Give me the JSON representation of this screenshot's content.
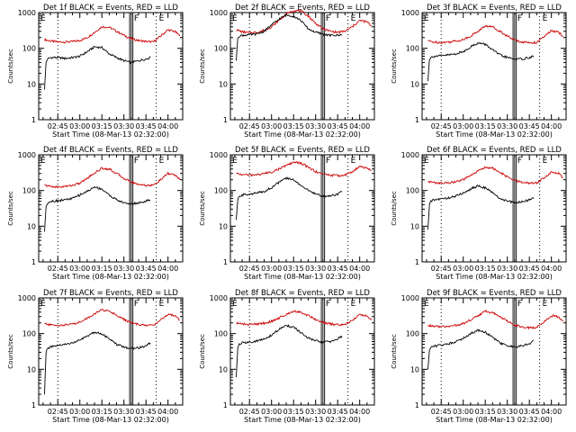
{
  "chart_data": [
    {
      "type": "line",
      "title": "Det 1f BLACK = Events, RED = LLD",
      "xlabel": "Start Time (08-Mar-13 02:32:00)",
      "ylabel": "Counts/sec",
      "yscale": "log",
      "ylim": [
        1,
        1000
      ],
      "yticks": [
        "1",
        "10",
        "100",
        "1000"
      ],
      "xticks": [
        "02:45",
        "03:00",
        "03:15",
        "03:30",
        "03:45",
        "04:00"
      ],
      "flags": [
        "F",
        "E"
      ],
      "series": [
        {
          "color": "#cc0000",
          "x": [
            "02:36",
            "02:40",
            "02:45",
            "02:50",
            "02:55",
            "03:00",
            "03:05",
            "03:10",
            "03:15",
            "03:20",
            "03:25",
            "03:30",
            "03:35",
            "03:40",
            "03:45",
            "03:50",
            "03:55",
            "04:00",
            "04:05",
            "04:08"
          ],
          "values": [
            175,
            160,
            150,
            150,
            155,
            165,
            200,
            280,
            400,
            390,
            300,
            230,
            185,
            165,
            155,
            150,
            220,
            330,
            290,
            220
          ]
        },
        {
          "color": "#000000",
          "x": [
            "02:36",
            "02:37",
            "02:38",
            "02:40",
            "02:45",
            "02:50",
            "02:55",
            "03:00",
            "03:05",
            "03:10",
            "03:15",
            "03:20",
            "03:25",
            "03:30",
            "03:35",
            "03:40",
            "03:45",
            "03:48"
          ],
          "values": [
            7,
            40,
            50,
            55,
            55,
            52,
            55,
            60,
            80,
            110,
            105,
            70,
            55,
            45,
            40,
            45,
            50,
            55
          ]
        }
      ]
    },
    {
      "type": "line",
      "title": "Det 2f BLACK = Events, RED = LLD",
      "xlabel": "Start Time (08-Mar-13 02:32:00)",
      "ylabel": "Counts/sec",
      "yscale": "log",
      "ylim": [
        1,
        1000
      ],
      "yticks": [
        "1",
        "10",
        "100",
        "1000"
      ],
      "xticks": [
        "02:45",
        "03:00",
        "03:15",
        "03:30",
        "03:45",
        "04:00"
      ],
      "flags": [
        "F",
        "E"
      ],
      "series": [
        {
          "color": "#cc0000",
          "x": [
            "02:36",
            "02:40",
            "02:45",
            "02:50",
            "02:55",
            "03:00",
            "03:05",
            "03:10",
            "03:15",
            "03:20",
            "03:25",
            "03:30",
            "03:35",
            "03:40",
            "03:45",
            "03:50",
            "03:55",
            "04:00",
            "04:05",
            "04:08"
          ],
          "values": [
            330,
            290,
            270,
            280,
            320,
            400,
            600,
            900,
            1150,
            1100,
            800,
            500,
            350,
            300,
            280,
            300,
            400,
            600,
            550,
            420
          ]
        },
        {
          "color": "#000000",
          "x": [
            "02:36",
            "02:37",
            "02:38",
            "02:40",
            "02:45",
            "02:50",
            "02:55",
            "03:00",
            "03:05",
            "03:10",
            "03:15",
            "03:20",
            "03:25",
            "03:30",
            "03:35",
            "03:40",
            "03:45",
            "03:48"
          ],
          "values": [
            45,
            200,
            220,
            230,
            240,
            250,
            300,
            450,
            650,
            850,
            800,
            600,
            350,
            280,
            250,
            230,
            230,
            240
          ]
        }
      ]
    },
    {
      "type": "line",
      "title": "Det 3f BLACK = Events, RED = LLD",
      "xlabel": "Start Time (08-Mar-13 02:32:00)",
      "ylabel": "Counts/sec",
      "yscale": "log",
      "ylim": [
        1,
        1000
      ],
      "yticks": [
        "1",
        "10",
        "100",
        "1000"
      ],
      "xticks": [
        "02:45",
        "03:00",
        "03:15",
        "03:30",
        "03:45",
        "04:00"
      ],
      "flags": [
        "F",
        "E"
      ],
      "series": [
        {
          "color": "#cc0000",
          "x": [
            "02:36",
            "02:40",
            "02:45",
            "02:50",
            "02:55",
            "03:00",
            "03:05",
            "03:10",
            "03:15",
            "03:20",
            "03:25",
            "03:30",
            "03:35",
            "03:40",
            "03:45",
            "03:50",
            "03:55",
            "04:00",
            "04:05",
            "04:08"
          ],
          "values": [
            160,
            150,
            145,
            150,
            160,
            175,
            220,
            300,
            420,
            400,
            300,
            220,
            170,
            150,
            145,
            145,
            210,
            310,
            280,
            210
          ]
        },
        {
          "color": "#000000",
          "x": [
            "02:36",
            "02:37",
            "02:38",
            "02:40",
            "02:45",
            "02:50",
            "02:55",
            "03:00",
            "03:05",
            "03:10",
            "03:15",
            "03:20",
            "03:25",
            "03:30",
            "03:35",
            "03:40",
            "03:45",
            "03:48"
          ],
          "values": [
            12,
            50,
            55,
            60,
            62,
            65,
            70,
            80,
            110,
            140,
            130,
            90,
            65,
            55,
            50,
            50,
            55,
            60
          ]
        }
      ]
    },
    {
      "type": "line",
      "title": "Det 4f BLACK = Events, RED = LLD",
      "xlabel": "Start Time (08-Mar-13 02:32:00)",
      "ylabel": "Counts/sec",
      "yscale": "log",
      "ylim": [
        1,
        1000
      ],
      "yticks": [
        "1",
        "10",
        "100",
        "1000"
      ],
      "xticks": [
        "02:45",
        "03:00",
        "03:15",
        "03:30",
        "03:45",
        "04:00"
      ],
      "flags": [
        "F",
        "E"
      ],
      "series": [
        {
          "color": "#cc0000",
          "x": [
            "02:36",
            "02:40",
            "02:45",
            "02:50",
            "02:55",
            "03:00",
            "03:05",
            "03:10",
            "03:15",
            "03:20",
            "03:25",
            "03:30",
            "03:35",
            "03:40",
            "03:45",
            "03:50",
            "03:55",
            "04:00",
            "04:05",
            "04:08"
          ],
          "values": [
            140,
            130,
            125,
            130,
            140,
            160,
            220,
            310,
            420,
            400,
            300,
            220,
            170,
            150,
            140,
            140,
            200,
            300,
            270,
            200
          ]
        },
        {
          "color": "#000000",
          "x": [
            "02:36",
            "02:37",
            "02:38",
            "02:40",
            "02:45",
            "02:50",
            "02:55",
            "03:00",
            "03:05",
            "03:10",
            "03:15",
            "03:20",
            "03:25",
            "03:30",
            "03:35",
            "03:40",
            "03:45",
            "03:48"
          ],
          "values": [
            7,
            35,
            45,
            50,
            52,
            55,
            60,
            75,
            95,
            125,
            110,
            75,
            55,
            45,
            42,
            45,
            50,
            55
          ]
        }
      ]
    },
    {
      "type": "line",
      "title": "Det 5f BLACK = Events, RED = LLD",
      "xlabel": "Start Time (08-Mar-13 02:32:00)",
      "ylabel": "Counts/sec",
      "yscale": "log",
      "ylim": [
        1,
        1000
      ],
      "yticks": [
        "1",
        "10",
        "100",
        "1000"
      ],
      "xticks": [
        "02:45",
        "03:00",
        "03:15",
        "03:30",
        "03:45",
        "04:00"
      ],
      "flags": [
        "F",
        "E"
      ],
      "series": [
        {
          "color": "#cc0000",
          "x": [
            "02:36",
            "02:40",
            "02:45",
            "02:50",
            "02:55",
            "03:00",
            "03:05",
            "03:10",
            "03:15",
            "03:20",
            "03:25",
            "03:30",
            "03:35",
            "03:40",
            "03:45",
            "03:50",
            "03:55",
            "04:00",
            "04:05",
            "04:08"
          ],
          "values": [
            300,
            280,
            270,
            275,
            300,
            330,
            400,
            500,
            620,
            580,
            450,
            340,
            290,
            270,
            260,
            270,
            340,
            460,
            430,
            360
          ]
        },
        {
          "color": "#000000",
          "x": [
            "02:36",
            "02:37",
            "02:38",
            "02:40",
            "02:45",
            "02:50",
            "02:55",
            "03:00",
            "03:05",
            "03:10",
            "03:15",
            "03:20",
            "03:25",
            "03:30",
            "03:35",
            "03:40",
            "03:45",
            "03:48"
          ],
          "values": [
            15,
            55,
            65,
            75,
            80,
            85,
            95,
            120,
            170,
            220,
            200,
            140,
            100,
            80,
            70,
            70,
            80,
            95
          ]
        }
      ]
    },
    {
      "type": "line",
      "title": "Det 6f BLACK = Events, RED = LLD",
      "xlabel": "Start Time (08-Mar-13 02:32:00)",
      "ylabel": "Counts/sec",
      "yscale": "log",
      "ylim": [
        1,
        1000
      ],
      "yticks": [
        "1",
        "10",
        "100",
        "1000"
      ],
      "xticks": [
        "02:45",
        "03:00",
        "03:15",
        "03:30",
        "03:45",
        "04:00"
      ],
      "flags": [
        "F",
        "E"
      ],
      "series": [
        {
          "color": "#cc0000",
          "x": [
            "02:36",
            "02:40",
            "02:45",
            "02:50",
            "02:55",
            "03:00",
            "03:05",
            "03:10",
            "03:15",
            "03:20",
            "03:25",
            "03:30",
            "03:35",
            "03:40",
            "03:45",
            "03:50",
            "03:55",
            "04:00",
            "04:05",
            "04:08"
          ],
          "values": [
            180,
            165,
            160,
            165,
            175,
            200,
            260,
            350,
            450,
            420,
            320,
            240,
            190,
            170,
            160,
            160,
            230,
            330,
            300,
            230
          ]
        },
        {
          "color": "#000000",
          "x": [
            "02:36",
            "02:37",
            "02:38",
            "02:40",
            "02:45",
            "02:50",
            "02:55",
            "03:00",
            "03:05",
            "03:10",
            "03:15",
            "03:20",
            "03:25",
            "03:30",
            "03:35",
            "03:40",
            "03:45",
            "03:48"
          ],
          "values": [
            8,
            40,
            50,
            55,
            58,
            62,
            70,
            85,
            110,
            135,
            120,
            85,
            60,
            50,
            45,
            48,
            55,
            60
          ]
        }
      ]
    },
    {
      "type": "line",
      "title": "Det 7f BLACK = Events, RED = LLD",
      "xlabel": "Start Time (08-Mar-13 02:32:00)",
      "ylabel": "Counts/sec",
      "yscale": "log",
      "ylim": [
        1,
        1000
      ],
      "yticks": [
        "1",
        "10",
        "100",
        "1000"
      ],
      "xticks": [
        "02:45",
        "03:00",
        "03:15",
        "03:30",
        "03:45",
        "04:00"
      ],
      "flags": [
        "F",
        "E"
      ],
      "series": [
        {
          "color": "#cc0000",
          "x": [
            "02:36",
            "02:40",
            "02:45",
            "02:50",
            "02:55",
            "03:00",
            "03:05",
            "03:10",
            "03:15",
            "03:20",
            "03:25",
            "03:30",
            "03:35",
            "03:40",
            "03:45",
            "03:50",
            "03:55",
            "04:00",
            "04:05",
            "04:08"
          ],
          "values": [
            190,
            175,
            170,
            175,
            185,
            210,
            270,
            360,
            460,
            430,
            330,
            250,
            200,
            180,
            170,
            170,
            240,
            350,
            320,
            240
          ]
        },
        {
          "color": "#000000",
          "x": [
            "02:36",
            "02:37",
            "02:38",
            "02:40",
            "02:45",
            "02:50",
            "02:55",
            "03:00",
            "03:05",
            "03:10",
            "03:15",
            "03:20",
            "03:25",
            "03:30",
            "03:35",
            "03:40",
            "03:45",
            "03:48"
          ],
          "values": [
            2,
            30,
            38,
            42,
            45,
            50,
            55,
            65,
            85,
            110,
            100,
            70,
            50,
            42,
            38,
            40,
            45,
            55
          ]
        }
      ]
    },
    {
      "type": "line",
      "title": "Det 8f BLACK = Events, RED = LLD",
      "xlabel": "Start Time (08-Mar-13 02:32:00)",
      "ylabel": "Counts/sec",
      "yscale": "log",
      "ylim": [
        1,
        1000
      ],
      "yticks": [
        "1",
        "10",
        "100",
        "1000"
      ],
      "xticks": [
        "02:45",
        "03:00",
        "03:15",
        "03:30",
        "03:45",
        "04:00"
      ],
      "flags": [
        "F",
        "E"
      ],
      "series": [
        {
          "color": "#cc0000",
          "x": [
            "02:36",
            "02:40",
            "02:45",
            "02:50",
            "02:55",
            "03:00",
            "03:05",
            "03:10",
            "03:15",
            "03:20",
            "03:25",
            "03:30",
            "03:35",
            "03:40",
            "03:45",
            "03:50",
            "03:55",
            "04:00",
            "04:05",
            "04:08"
          ],
          "values": [
            200,
            185,
            180,
            185,
            195,
            220,
            270,
            350,
            430,
            400,
            320,
            250,
            205,
            185,
            175,
            175,
            240,
            340,
            310,
            240
          ]
        },
        {
          "color": "#000000",
          "x": [
            "02:36",
            "02:37",
            "02:38",
            "02:40",
            "02:45",
            "02:50",
            "02:55",
            "03:00",
            "03:05",
            "03:10",
            "03:15",
            "03:20",
            "03:25",
            "03:30",
            "03:35",
            "03:40",
            "03:45",
            "03:48"
          ],
          "values": [
            6,
            40,
            50,
            55,
            58,
            62,
            70,
            90,
            130,
            170,
            150,
            105,
            75,
            62,
            58,
            60,
            70,
            85
          ]
        }
      ]
    },
    {
      "type": "line",
      "title": "Det 9f BLACK = Events, RED = LLD",
      "xlabel": "Start Time (08-Mar-13 02:32:00)",
      "ylabel": "Counts/sec",
      "yscale": "log",
      "ylim": [
        1,
        1000
      ],
      "yticks": [
        "1",
        "10",
        "100",
        "1000"
      ],
      "xticks": [
        "02:45",
        "03:00",
        "03:15",
        "03:30",
        "03:45",
        "04:00"
      ],
      "flags": [
        "F",
        "E"
      ],
      "series": [
        {
          "color": "#cc0000",
          "x": [
            "02:36",
            "02:40",
            "02:45",
            "02:50",
            "02:55",
            "03:00",
            "03:05",
            "03:10",
            "03:15",
            "03:20",
            "03:25",
            "03:30",
            "03:35",
            "03:40",
            "03:45",
            "03:50",
            "03:55",
            "04:00",
            "04:05",
            "04:08"
          ],
          "values": [
            170,
            160,
            155,
            160,
            170,
            190,
            240,
            320,
            420,
            390,
            300,
            220,
            175,
            155,
            145,
            150,
            210,
            320,
            290,
            220
          ]
        },
        {
          "color": "#000000",
          "x": [
            "02:36",
            "02:37",
            "02:38",
            "02:40",
            "02:45",
            "02:50",
            "02:55",
            "03:00",
            "03:05",
            "03:10",
            "03:15",
            "03:20",
            "03:25",
            "03:30",
            "03:35",
            "03:40",
            "03:45",
            "03:48"
          ],
          "values": [
            10,
            35,
            42,
            45,
            48,
            52,
            60,
            75,
            100,
            125,
            110,
            78,
            55,
            45,
            42,
            45,
            52,
            65
          ]
        }
      ]
    }
  ]
}
